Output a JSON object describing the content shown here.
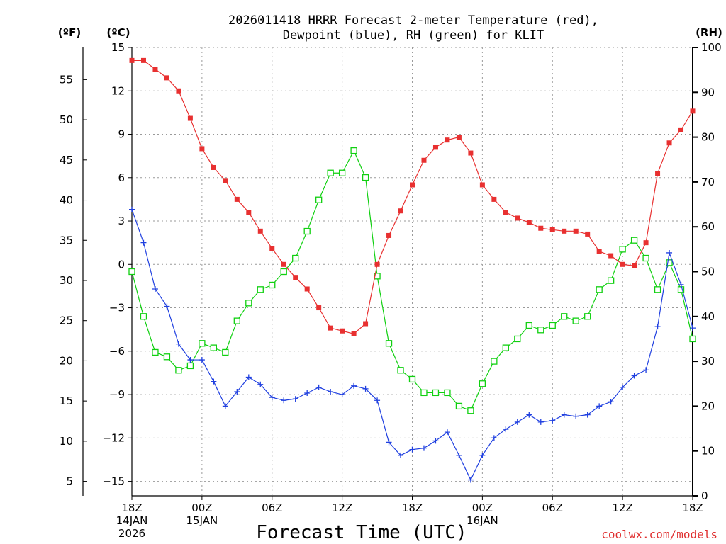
{
  "header": {
    "title_line1": "2026011418 HRRR Forecast 2-meter Temperature (red),",
    "title_line2": "Dewpoint (blue), RH (green) for KLIT",
    "unit_f": "(ºF)",
    "unit_c": "(ºC)",
    "unit_rh": "(RH)"
  },
  "footer": {
    "xlabel": "Forecast Time (UTC)",
    "credit": "coolwx.com/models"
  },
  "colors": {
    "temperature": "#e83030",
    "dewpoint": "#2040e0",
    "rh": "#10d010"
  },
  "chart_data": {
    "type": "line",
    "station": "KLIT",
    "run": "2026011418",
    "model": "HRRR",
    "xlabel": "Forecast Time (UTC)",
    "x_hours": [
      0,
      1,
      2,
      3,
      4,
      5,
      6,
      7,
      8,
      9,
      10,
      11,
      12,
      13,
      14,
      15,
      16,
      17,
      18,
      19,
      20,
      21,
      22,
      23,
      24,
      25,
      26,
      27,
      28,
      29,
      30,
      31,
      32,
      33,
      34,
      35,
      36,
      37,
      38,
      39,
      40,
      41,
      42,
      43,
      44,
      45,
      46,
      47,
      48
    ],
    "x_ticks": [
      {
        "hour": 0,
        "label": "18Z",
        "label2": "14JAN",
        "label3": "2026"
      },
      {
        "hour": 6,
        "label": "00Z",
        "label2": "15JAN",
        "label3": ""
      },
      {
        "hour": 12,
        "label": "06Z",
        "label2": "",
        "label3": ""
      },
      {
        "hour": 18,
        "label": "12Z",
        "label2": "",
        "label3": ""
      },
      {
        "hour": 24,
        "label": "18Z",
        "label2": "",
        "label3": ""
      },
      {
        "hour": 30,
        "label": "00Z",
        "label2": "16JAN",
        "label3": ""
      },
      {
        "hour": 36,
        "label": "06Z",
        "label2": "",
        "label3": ""
      },
      {
        "hour": 42,
        "label": "12Z",
        "label2": "",
        "label3": ""
      },
      {
        "hour": 48,
        "label": "18Z",
        "label2": "",
        "label3": ""
      }
    ],
    "y_celsius": {
      "range": [
        -16,
        15
      ],
      "ticks": [
        "15",
        "12",
        "9",
        "6",
        "3",
        "0",
        "−3",
        "−6",
        "−9",
        "−12",
        "−15"
      ],
      "tick_values": [
        15,
        12,
        9,
        6,
        3,
        0,
        -3,
        -6,
        -9,
        -12,
        -15
      ]
    },
    "y_fahrenheit": {
      "ticks": [
        "55",
        "50",
        "45",
        "40",
        "35",
        "30",
        "25",
        "20",
        "15",
        "10",
        "5"
      ],
      "tick_values": [
        55,
        50,
        45,
        40,
        35,
        30,
        25,
        20,
        15,
        10,
        5
      ]
    },
    "y_rh": {
      "range": [
        0,
        100
      ],
      "ticks": [
        "100",
        "90",
        "80",
        "70",
        "60",
        "50",
        "40",
        "30",
        "20",
        "10",
        "0"
      ],
      "tick_values": [
        100,
        90,
        80,
        70,
        60,
        50,
        40,
        30,
        20,
        10,
        0
      ]
    },
    "series": [
      {
        "name": "Temperature",
        "axis": "celsius",
        "values": [
          14.1,
          14.1,
          13.5,
          12.9,
          12.0,
          10.1,
          8.0,
          6.7,
          5.8,
          4.5,
          3.6,
          2.3,
          1.1,
          0.0,
          -0.9,
          -1.7,
          -3.0,
          -4.4,
          -4.6,
          -4.8,
          -4.1,
          0.0,
          2.0,
          3.7,
          5.5,
          7.2,
          8.1,
          8.6,
          8.8,
          7.7,
          5.5,
          4.5,
          3.6,
          3.2,
          2.9,
          2.5,
          2.4,
          2.3,
          2.3,
          2.1,
          0.9,
          0.6,
          0.0,
          -0.1,
          1.5,
          6.3,
          8.4,
          9.3,
          10.6
        ]
      },
      {
        "name": "Dewpoint",
        "axis": "celsius",
        "values": [
          3.8,
          1.5,
          -1.7,
          -2.9,
          -5.5,
          -6.6,
          -6.6,
          -8.1,
          -9.8,
          -8.8,
          -7.8,
          -8.3,
          -9.2,
          -9.4,
          -9.3,
          -8.9,
          -8.5,
          -8.8,
          -9.0,
          -8.4,
          -8.6,
          -9.4,
          -12.3,
          -13.2,
          -12.8,
          -12.7,
          -12.2,
          -11.6,
          -13.2,
          -14.9,
          -13.2,
          -12.0,
          -11.4,
          -10.9,
          -10.4,
          -10.9,
          -10.8,
          -10.4,
          -10.5,
          -10.4,
          -9.8,
          -9.5,
          -8.5,
          -7.7,
          -7.3,
          -4.3,
          0.8,
          -1.4,
          -4.4
        ]
      },
      {
        "name": "RH",
        "axis": "rh",
        "values": [
          50,
          40,
          32,
          31,
          28,
          29,
          34,
          33,
          32,
          39,
          43,
          46,
          47,
          50,
          53,
          59,
          66,
          72,
          72,
          77,
          71,
          49,
          34,
          28,
          26,
          23,
          23,
          23,
          20,
          19,
          25,
          30,
          33,
          35,
          38,
          37,
          38,
          40,
          39,
          40,
          46,
          48,
          55,
          57,
          53,
          46,
          52,
          46,
          35
        ]
      }
    ]
  }
}
